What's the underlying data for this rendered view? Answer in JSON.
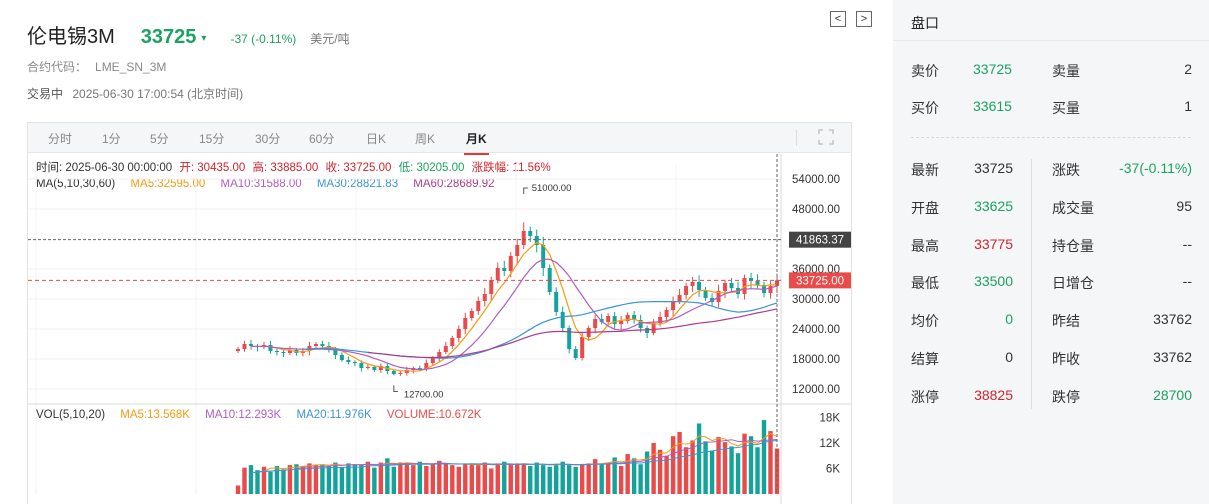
{
  "header": {
    "name": "伦电锡3M",
    "price": "33725",
    "change": "-37 (-0.11%)",
    "unit": "美元/吨",
    "code_label": "合约代码：",
    "code": "LME_SN_3M",
    "status": "交易中",
    "timestamp": "2025-06-30 17:00:54 (北京时间)"
  },
  "nav": {
    "prev": "<",
    "next": ">"
  },
  "tabs": [
    "分时",
    "1分",
    "5分",
    "15分",
    "30分",
    "60分",
    "日K",
    "周K",
    "月K"
  ],
  "active_tab": "月K",
  "ohlc_info": {
    "time": "时间: 2025-06-30 00:00:00",
    "open": "开: 30435.00",
    "high": "高: 33885.00",
    "close": "收: 33725.00",
    "low": "低: 30205.00",
    "pct": "涨跌幅: 11.56%"
  },
  "ma_info": {
    "label": "MA(5,10,30,60)",
    "ma5": "MA5:32595.00",
    "ma10": "MA10:31588.00",
    "ma30": "MA30:28821.83",
    "ma60": "MA60:28689.92"
  },
  "vol_info": {
    "label": "VOL(5,10,20)",
    "ma5": "MA5:13.568K",
    "ma10": "MA10:12.293K",
    "ma20": "MA20:11.976K",
    "volume": "VOLUME:10.672K"
  },
  "chart_labels": {
    "high_mark": "51000.00",
    "low_mark": "12700.00",
    "crosshair_price": "41863.37",
    "last_price": "33725.00",
    "price_ticks": [
      "54000.00",
      "48000.00",
      "36000.00",
      "30000.00",
      "24000.00",
      "18000.00",
      "12000.00"
    ],
    "vol_ticks": [
      "18K",
      "12K",
      "6K"
    ]
  },
  "colors": {
    "up": "#e94a4a",
    "down": "#14a39a",
    "ma5": "#f39c12",
    "ma10": "#b05cc6",
    "ma30": "#3a94d8",
    "ma60": "#b03a8a"
  },
  "chart_data": {
    "type": "candlestick",
    "title": "",
    "price_axis_ticks": [
      54000,
      48000,
      36000,
      30000,
      24000,
      18000,
      12000
    ],
    "price_range": [
      10000,
      57000
    ],
    "volume_axis_ticks": [
      18000,
      12000,
      6000
    ],
    "volume_range": [
      0,
      20000
    ],
    "annotations": {
      "max_high": 51000,
      "min_low": 12700,
      "crosshair": 41863.37,
      "last": 33725
    },
    "close_series": [
      20000,
      21000,
      20600,
      20400,
      20800,
      19600,
      19400,
      19200,
      19800,
      19200,
      19600,
      20600,
      21000,
      20600,
      20000,
      18800,
      17800,
      17400,
      17200,
      16200,
      16400,
      15800,
      16600,
      15600,
      15000,
      15200,
      15800,
      16200,
      16000,
      17200,
      18200,
      19400,
      20600,
      22200,
      24000,
      26200,
      27600,
      29600,
      31000,
      33800,
      36200,
      35600,
      38600,
      40800,
      43600,
      42600,
      40800,
      36200,
      31400,
      27400,
      24200,
      20000,
      18200,
      22400,
      24200,
      26000,
      25400,
      26600,
      25000,
      25600,
      26800,
      25800,
      24200,
      23200,
      25200,
      26400,
      27800,
      29600,
      30800,
      32600,
      33400,
      31800,
      30200,
      29400,
      31600,
      33200,
      32200,
      31000,
      34200,
      33600,
      32800,
      31200,
      32600,
      33725
    ],
    "volume_series": [
      2000,
      6200,
      6800,
      5600,
      6400,
      5200,
      6600,
      5800,
      6800,
      7000,
      6400,
      7200,
      6800,
      7000,
      6600,
      7400,
      6200,
      7200,
      7000,
      6800,
      7600,
      6200,
      7400,
      8400,
      6400,
      7400,
      7200,
      6800,
      7600,
      6600,
      7000,
      7800,
      7200,
      6800,
      6400,
      7200,
      7000,
      6800,
      7400,
      6000,
      7200,
      7600,
      6800,
      7200,
      7000,
      6600,
      7400,
      6800,
      6400,
      7000,
      7600,
      6800,
      6400,
      7000,
      7200,
      8200,
      7000,
      7400,
      8600,
      6600,
      9400,
      8400,
      7000,
      10000,
      12000,
      10400,
      9000,
      13600,
      14600,
      11000,
      12600,
      16600,
      12400,
      10200,
      13400,
      12200,
      11200,
      9600,
      14200,
      13600,
      11000,
      17400,
      14800,
      10700
    ],
    "ma5_last": 32595,
    "ma10_last": 31588,
    "ma30_last": 28821.83,
    "ma60_last": 28689.92,
    "vol_ma5_last": 13568,
    "vol_ma10_last": 12293,
    "vol_ma20_last": 11976
  },
  "panel": {
    "title": "盘口",
    "top_rows": [
      {
        "l1": "卖价",
        "v1": "33725",
        "c1": "green",
        "l2": "卖量",
        "v2": "2",
        "c2": "dark"
      },
      {
        "l1": "买价",
        "v1": "33615",
        "c1": "green",
        "l2": "买量",
        "v2": "1",
        "c2": "dark"
      }
    ],
    "rows": [
      {
        "l1": "最新",
        "v1": "33725",
        "c1": "dark",
        "l2": "涨跌",
        "v2": "-37(-0.11%)",
        "c2": "green"
      },
      {
        "l1": "开盘",
        "v1": "33625",
        "c1": "green",
        "l2": "成交量",
        "v2": "95",
        "c2": "dark"
      },
      {
        "l1": "最高",
        "v1": "33775",
        "c1": "red",
        "l2": "持仓量",
        "v2": "--",
        "c2": "dark"
      },
      {
        "l1": "最低",
        "v1": "33500",
        "c1": "green",
        "l2": "日增仓",
        "v2": "--",
        "c2": "dark"
      },
      {
        "l1": "均价",
        "v1": "0",
        "c1": "green",
        "l2": "昨结",
        "v2": "33762",
        "c2": "dark"
      },
      {
        "l1": "结算",
        "v1": "0",
        "c1": "dark",
        "l2": "昨收",
        "v2": "33762",
        "c2": "dark"
      },
      {
        "l1": "涨停",
        "v1": "38825",
        "c1": "red",
        "l2": "跌停",
        "v2": "28700",
        "c2": "green"
      }
    ]
  }
}
